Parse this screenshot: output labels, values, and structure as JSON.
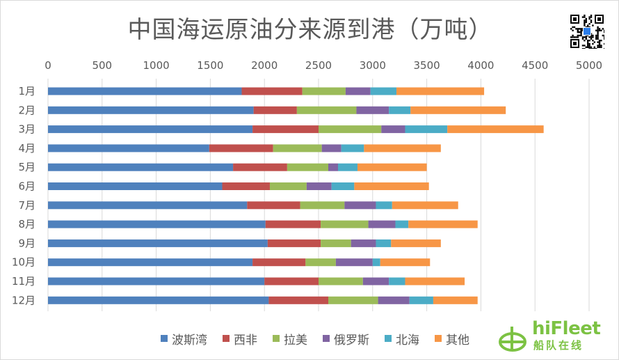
{
  "chart_data": {
    "type": "bar",
    "orientation": "horizontal",
    "stacked": true,
    "title": "中国海运原油分来源到港（万吨）",
    "categories": [
      "1月",
      "2月",
      "3月",
      "4月",
      "5月",
      "6月",
      "7月",
      "8月",
      "9月",
      "10月",
      "11月",
      "12月"
    ],
    "series": [
      {
        "name": "波斯湾",
        "color": "#4f81bd",
        "values": [
          1790,
          1900,
          1890,
          1490,
          1710,
          1610,
          1840,
          2010,
          2030,
          1890,
          2000,
          2040
        ]
      },
      {
        "name": "西非",
        "color": "#c0504d",
        "values": [
          560,
          400,
          610,
          590,
          500,
          440,
          490,
          510,
          490,
          490,
          500,
          550
        ]
      },
      {
        "name": "拉美",
        "color": "#9bbb59",
        "values": [
          400,
          550,
          580,
          450,
          380,
          340,
          410,
          440,
          280,
          280,
          410,
          460
        ]
      },
      {
        "name": "俄罗斯",
        "color": "#8064a2",
        "values": [
          230,
          300,
          220,
          180,
          90,
          230,
          290,
          250,
          230,
          340,
          240,
          290
        ]
      },
      {
        "name": "北海",
        "color": "#4bacc6",
        "values": [
          240,
          200,
          390,
          210,
          180,
          210,
          150,
          120,
          140,
          70,
          150,
          220
        ]
      },
      {
        "name": "其他",
        "color": "#f79646",
        "values": [
          810,
          880,
          890,
          710,
          640,
          690,
          610,
          640,
          460,
          460,
          550,
          410
        ]
      }
    ],
    "xlim": [
      0,
      5000
    ],
    "xticks": [
      "0",
      "500",
      "1000",
      "1500",
      "2000",
      "2500",
      "3000",
      "3500",
      "4000",
      "4500",
      "5000"
    ],
    "xaxis_position": "top",
    "grid": true,
    "legend_position": "bottom"
  },
  "logo": {
    "name": "hiFleet",
    "subtitle": "船队在线"
  },
  "icons": {
    "qr": "qr-code-icon",
    "logo": "hifleet-logo-icon"
  }
}
